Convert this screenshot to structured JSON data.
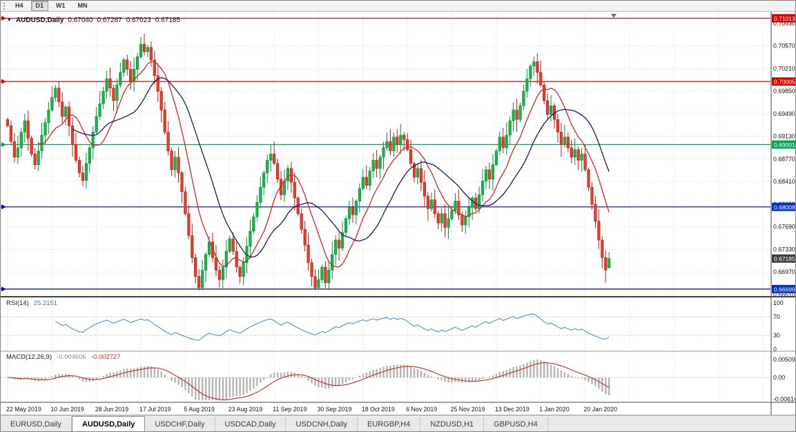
{
  "toolbar": {
    "timeframes": [
      {
        "label": "H4",
        "active": false
      },
      {
        "label": "D1",
        "active": true
      },
      {
        "label": "W1",
        "active": false
      },
      {
        "label": "MN",
        "active": false
      }
    ]
  },
  "chart": {
    "symbol_period": "AUDUSD,Daily",
    "ohlc": {
      "open": "0.67040",
      "high": "0.67287",
      "low": "0.67023",
      "close": "0.67185"
    },
    "current_price": {
      "label": "0.67185",
      "value": 0.67185,
      "badge_color": "#3d3d3d"
    },
    "price_axis_labels": [
      "0.70930",
      "0.70570",
      "0.70210",
      "0.69850",
      "0.69490",
      "0.69130",
      "0.68770",
      "0.68410",
      "0.68050",
      "0.67690",
      "0.67330",
      "0.66970",
      "0.66610"
    ],
    "levels": [
      {
        "label": "0.71013",
        "value": 0.71013,
        "color": "#d80000",
        "badge_color": "#d80000"
      },
      {
        "label": "0.70005",
        "value": 0.70005,
        "color": "#e00000",
        "badge_color": "#e00000"
      },
      {
        "label": "0.69001",
        "value": 0.69001,
        "color": "#00a651",
        "badge_color": "#00a651"
      },
      {
        "label": "0.68008",
        "value": 0.68008,
        "color": "#000099",
        "badge_color": "#0030c8"
      },
      {
        "label": "0.66699",
        "value": 0.66699,
        "color": "#000099",
        "badge_color": "#0030c8"
      }
    ]
  },
  "rsi": {
    "title": "RSI(14)",
    "value": "25.2151",
    "period": 14,
    "line_color": "#4a92c4",
    "levels": [
      70,
      30
    ],
    "scale_labels": [
      "100",
      "70",
      "30",
      "0"
    ]
  },
  "macd": {
    "title": "MACD(12,26,9)",
    "macd_value": "-0.004606",
    "signal_value": "-0.002727",
    "histogram_color": "#b4b4b4",
    "signal_color": "#c22a1e",
    "scale": [
      {
        "label": "0.00509",
        "value": 0.00509
      },
      {
        "label": "0.00",
        "value": 0
      },
      {
        "label": "-0.00614",
        "value": -0.00614
      }
    ]
  },
  "tabs": [
    {
      "label": "EURUSD,Daily",
      "active": false
    },
    {
      "label": "AUDUSD,Daily",
      "active": true
    },
    {
      "label": "USDCHF,Daily",
      "active": false
    },
    {
      "label": "USDCAD,Daily",
      "active": false
    },
    {
      "label": "USDCNH,Daily",
      "active": false
    },
    {
      "label": "EURGBP,H4",
      "active": false
    },
    {
      "label": "NZDUSD,H1",
      "active": false
    },
    {
      "label": "GBPUSD,H4",
      "active": false
    }
  ],
  "colors": {
    "candle_up": {
      "fill": "#15b54a",
      "stroke": "#0b8f38"
    },
    "candle_down": {
      "fill": "#e53c2e",
      "stroke": "#b02015"
    }
  },
  "chart_data": {
    "type": "candlestick",
    "symbol": "AUDUSD",
    "timeframe": "Daily",
    "y_axis": {
      "min": 0.6661,
      "max": 0.7093,
      "step": 0.0036
    },
    "x_tick_labels": [
      "22 May 2019",
      "10 Jun 2019",
      "28 Jun 2019",
      "17 Jul 2019",
      "5 Aug 2019",
      "23 Aug 2019",
      "11 Sep 2019",
      "30 Sep 2019",
      "18 Oct 2019",
      "6 Nov 2019",
      "25 Nov 2019",
      "13 Dec 2019",
      "1 Jan 2020",
      "20 Jan 2020"
    ],
    "candles_per_tick": 13,
    "closes": [
      0.693,
      0.6905,
      0.688,
      0.6895,
      0.692,
      0.6938,
      0.691,
      0.6885,
      0.6868,
      0.689,
      0.6915,
      0.6935,
      0.6955,
      0.6975,
      0.699,
      0.6968,
      0.6945,
      0.696,
      0.693,
      0.69,
      0.6875,
      0.6855,
      0.6843,
      0.687,
      0.6895,
      0.692,
      0.6945,
      0.6965,
      0.6985,
      0.7005,
      0.699,
      0.697,
      0.6995,
      0.7015,
      0.7035,
      0.702,
      0.7,
      0.702,
      0.704,
      0.706,
      0.7048,
      0.7055,
      0.7035,
      0.701,
      0.6985,
      0.6955,
      0.692,
      0.689,
      0.686,
      0.688,
      0.6855,
      0.6825,
      0.679,
      0.6755,
      0.672,
      0.669,
      0.6672,
      0.67,
      0.6725,
      0.6745,
      0.672,
      0.67,
      0.6685,
      0.6705,
      0.673,
      0.675,
      0.673,
      0.6705,
      0.669,
      0.6712,
      0.6738,
      0.6762,
      0.6785,
      0.6808,
      0.6832,
      0.6855,
      0.6875,
      0.6885,
      0.687,
      0.6845,
      0.682,
      0.6842,
      0.6862,
      0.684,
      0.6815,
      0.679,
      0.6765,
      0.674,
      0.6712,
      0.669,
      0.6672,
      0.6685,
      0.6705,
      0.668,
      0.67,
      0.6725,
      0.6748,
      0.6735,
      0.676,
      0.6782,
      0.68,
      0.6788,
      0.681,
      0.683,
      0.6848,
      0.6835,
      0.6858,
      0.6875,
      0.6862,
      0.688,
      0.6895,
      0.6905,
      0.689,
      0.6912,
      0.69,
      0.6915,
      0.6908,
      0.6892,
      0.687,
      0.6848,
      0.6862,
      0.684,
      0.6818,
      0.6798,
      0.6812,
      0.679,
      0.6775,
      0.679,
      0.6768,
      0.6782,
      0.6795,
      0.681,
      0.6788,
      0.6772,
      0.6785,
      0.68,
      0.6815,
      0.6798,
      0.682,
      0.6842,
      0.686,
      0.6845,
      0.6868,
      0.689,
      0.6912,
      0.6895,
      0.6915,
      0.6938,
      0.6955,
      0.694,
      0.6962,
      0.6985,
      0.7005,
      0.7025,
      0.7032,
      0.7015,
      0.6995,
      0.697,
      0.6948,
      0.6962,
      0.694,
      0.692,
      0.69,
      0.6912,
      0.6895,
      0.688,
      0.6892,
      0.6875,
      0.6885,
      0.686,
      0.6832,
      0.6805,
      0.6778,
      0.6748,
      0.672,
      0.67,
      0.67185
    ],
    "current_ohlc": [
      0.6704,
      0.67287,
      0.67023,
      0.67185
    ],
    "moving_averages": [
      {
        "type": "sma",
        "period": 10,
        "color": "#d82222"
      },
      {
        "type": "sma",
        "period": 20,
        "color": "#161660"
      }
    ],
    "horizontal_levels": [
      0.71013,
      0.70005,
      0.69001,
      0.68008,
      0.66699
    ],
    "rsi": {
      "period": 14,
      "last": 25.2151
    },
    "macd": {
      "fast": 12,
      "slow": 26,
      "signal": 9,
      "last": [
        -0.004606,
        -0.002727
      ]
    }
  }
}
